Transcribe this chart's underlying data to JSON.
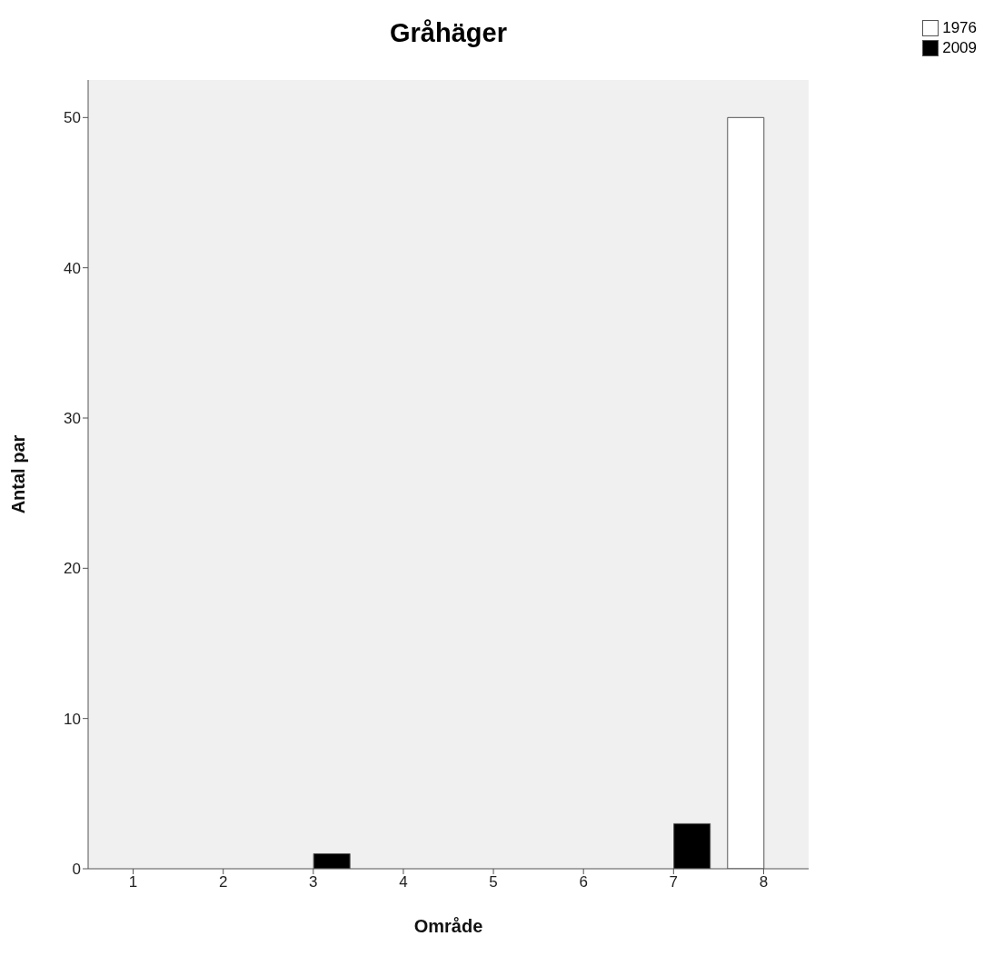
{
  "chart_data": {
    "type": "bar",
    "title": "Gråhäger",
    "xlabel": "Område",
    "ylabel": "Antal par",
    "categories": [
      "1",
      "2",
      "3",
      "4",
      "5",
      "6",
      "7",
      "8"
    ],
    "series": [
      {
        "name": "1976",
        "color": "#ffffff",
        "values": [
          0,
          0,
          0,
          0,
          0,
          0,
          0,
          50
        ]
      },
      {
        "name": "2009",
        "color": "#000000",
        "values": [
          0,
          0,
          1,
          0,
          0,
          0,
          3,
          0
        ]
      }
    ],
    "ylim": [
      0,
      52.5
    ],
    "yticks": [
      0,
      10,
      20,
      30,
      40,
      50
    ],
    "legend": "top right"
  }
}
